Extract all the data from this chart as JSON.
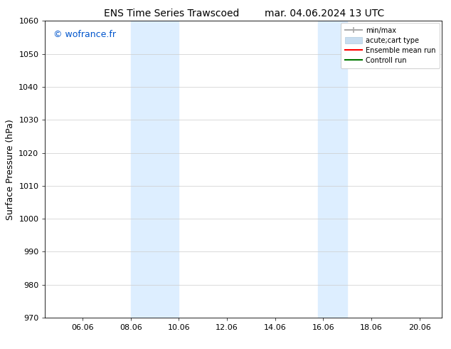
{
  "title_left": "ENS Time Series Trawscoed",
  "title_right": "mar. 04.06.2024 13 UTC",
  "ylabel": "Surface Pressure (hPa)",
  "ylim": [
    970,
    1060
  ],
  "yticks": [
    970,
    980,
    990,
    1000,
    1010,
    1020,
    1030,
    1040,
    1050,
    1060
  ],
  "xlim": [
    4.5,
    21.0
  ],
  "xticks": [
    6.06,
    8.06,
    10.06,
    12.06,
    14.06,
    16.06,
    18.06,
    20.06
  ],
  "xticklabels": [
    "06.06",
    "08.06",
    "10.06",
    "12.06",
    "14.06",
    "16.06",
    "18.06",
    "20.06"
  ],
  "watermark": "© wofrance.fr",
  "watermark_color": "#0055cc",
  "shaded_bands": [
    {
      "xmin": 8.06,
      "xmax": 10.06,
      "color": "#ddeeff"
    },
    {
      "xmin": 15.85,
      "xmax": 17.06,
      "color": "#ddeeff"
    }
  ],
  "legend_entries": [
    {
      "label": "min/max",
      "color": "#aaaaaa",
      "lw": 1.5
    },
    {
      "label": "acute;cart type",
      "color": "#c8ddf0",
      "lw": 8
    },
    {
      "label": "Ensemble mean run",
      "color": "#ff0000",
      "lw": 1.5
    },
    {
      "label": "Controll run",
      "color": "#007700",
      "lw": 1.5
    }
  ],
  "bg_color": "#ffffff",
  "plot_bg_color": "#ffffff",
  "grid_color": "#cccccc",
  "title_fontsize": 10,
  "tick_fontsize": 8,
  "ylabel_fontsize": 9,
  "watermark_fontsize": 9,
  "legend_fontsize": 7
}
